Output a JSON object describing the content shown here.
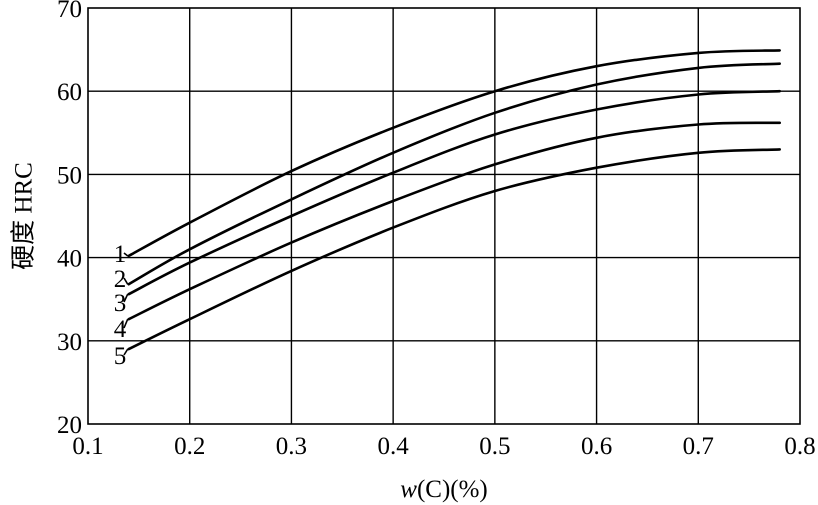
{
  "chart_data": {
    "type": "line",
    "xlabel_italic": "w",
    "xlabel_rest": "(C)(%)",
    "ylabel": "硬度 HRC",
    "xlim": [
      0.1,
      0.8
    ],
    "ylim": [
      20,
      70
    ],
    "xticks": [
      "0.1",
      "0.2",
      "0.3",
      "0.4",
      "0.5",
      "0.6",
      "0.7",
      "0.8"
    ],
    "yticks": [
      "20",
      "30",
      "40",
      "50",
      "60",
      "70"
    ],
    "grid": true,
    "series": [
      {
        "name": "1",
        "x": [
          0.14,
          0.2,
          0.3,
          0.4,
          0.5,
          0.6,
          0.7,
          0.78
        ],
        "y": [
          40.2,
          44.2,
          50.4,
          55.6,
          60.0,
          63.0,
          64.6,
          64.9
        ]
      },
      {
        "name": "2",
        "x": [
          0.14,
          0.2,
          0.3,
          0.4,
          0.5,
          0.6,
          0.7,
          0.78
        ],
        "y": [
          36.8,
          41.0,
          47.0,
          52.6,
          57.4,
          60.8,
          62.8,
          63.3
        ]
      },
      {
        "name": "3",
        "x": [
          0.14,
          0.2,
          0.3,
          0.4,
          0.5,
          0.6,
          0.7,
          0.78
        ],
        "y": [
          35.6,
          39.4,
          45.0,
          50.2,
          54.8,
          57.8,
          59.6,
          60.0
        ]
      },
      {
        "name": "4",
        "x": [
          0.14,
          0.2,
          0.3,
          0.4,
          0.5,
          0.6,
          0.7,
          0.78
        ],
        "y": [
          32.6,
          36.2,
          41.8,
          46.8,
          51.2,
          54.4,
          56.0,
          56.2
        ]
      },
      {
        "name": "5",
        "x": [
          0.14,
          0.2,
          0.3,
          0.4,
          0.5,
          0.6,
          0.7,
          0.78
        ],
        "y": [
          29.0,
          32.6,
          38.4,
          43.6,
          48.0,
          50.8,
          52.6,
          53.0
        ]
      }
    ]
  }
}
